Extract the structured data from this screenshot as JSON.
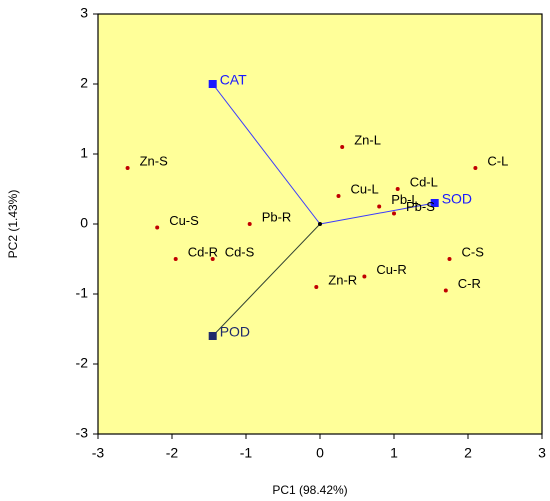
{
  "chart_data": {
    "type": "biplot",
    "x_label": "PC1 (98.42%)",
    "y_label": "PC2 (1.43%)",
    "xlim": [
      -3,
      3
    ],
    "ylim": [
      -3,
      3
    ],
    "xticks": [
      -3,
      -2,
      -1,
      0,
      1,
      2,
      3
    ],
    "yticks": [
      -3,
      -2,
      -1,
      0,
      1,
      2,
      3
    ],
    "background": "#ffff99",
    "points": {
      "color": "#c00000",
      "labels": [
        "Zn-S",
        "Cu-S",
        "Cd-R",
        "Cd-S",
        "Pb-R",
        "Zn-L",
        "Cu-L",
        "Cd-L",
        "Pb-L",
        "Pb-S",
        "C-L",
        "C-S",
        "C-R",
        "Zn-R",
        "Cu-R"
      ],
      "x": [
        -2.6,
        -2.2,
        -1.95,
        -1.45,
        -0.95,
        0.3,
        0.25,
        1.05,
        0.8,
        1.0,
        2.1,
        1.75,
        1.7,
        -0.05,
        0.6
      ],
      "y": [
        0.8,
        -0.05,
        -0.5,
        -0.5,
        0,
        1.1,
        0.4,
        0.5,
        0.25,
        0.15,
        0.8,
        -0.5,
        -0.95,
        -0.9,
        -0.75
      ]
    },
    "loadings": {
      "labels": [
        "CAT",
        "SOD",
        "POD"
      ],
      "x": [
        -1.45,
        1.55,
        -1.45
      ],
      "y": [
        2.0,
        0.3,
        -1.6
      ],
      "colors": [
        "#1a1aff",
        "#1a1aff",
        "#1f2a6b"
      ],
      "line_colors": [
        "#3a3aff",
        "#3a3aff",
        "#334433"
      ]
    }
  }
}
